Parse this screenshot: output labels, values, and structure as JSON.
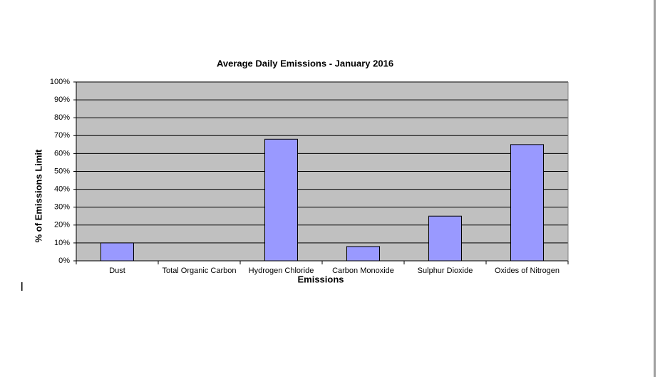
{
  "chart_data": {
    "type": "bar",
    "title": "Average Daily Emissions - January 2016",
    "x_label": "Emissions",
    "y_label": "% of Emissions Limit",
    "categories": [
      "Dust",
      "Total Organic Carbon",
      "Hydrogen Chloride",
      "Carbon Monoxide",
      "Sulphur Dioxide",
      "Oxides of Nitrogen"
    ],
    "values": [
      10,
      0,
      68,
      8,
      25,
      65
    ],
    "color": "#9999ff",
    "ylim": [
      0,
      100
    ],
    "yticks": [
      {
        "value": 0,
        "label": "0%"
      },
      {
        "value": 10,
        "label": "10%"
      },
      {
        "value": 20,
        "label": "20%"
      },
      {
        "value": 30,
        "label": "30%"
      },
      {
        "value": 40,
        "label": "40%"
      },
      {
        "value": 50,
        "label": "50%"
      },
      {
        "value": 60,
        "label": "60%"
      },
      {
        "value": 70,
        "label": "70%"
      },
      {
        "value": 80,
        "label": "80%"
      },
      {
        "value": 90,
        "label": "90%"
      },
      {
        "value": 100,
        "label": "100%"
      }
    ],
    "grid": true
  }
}
